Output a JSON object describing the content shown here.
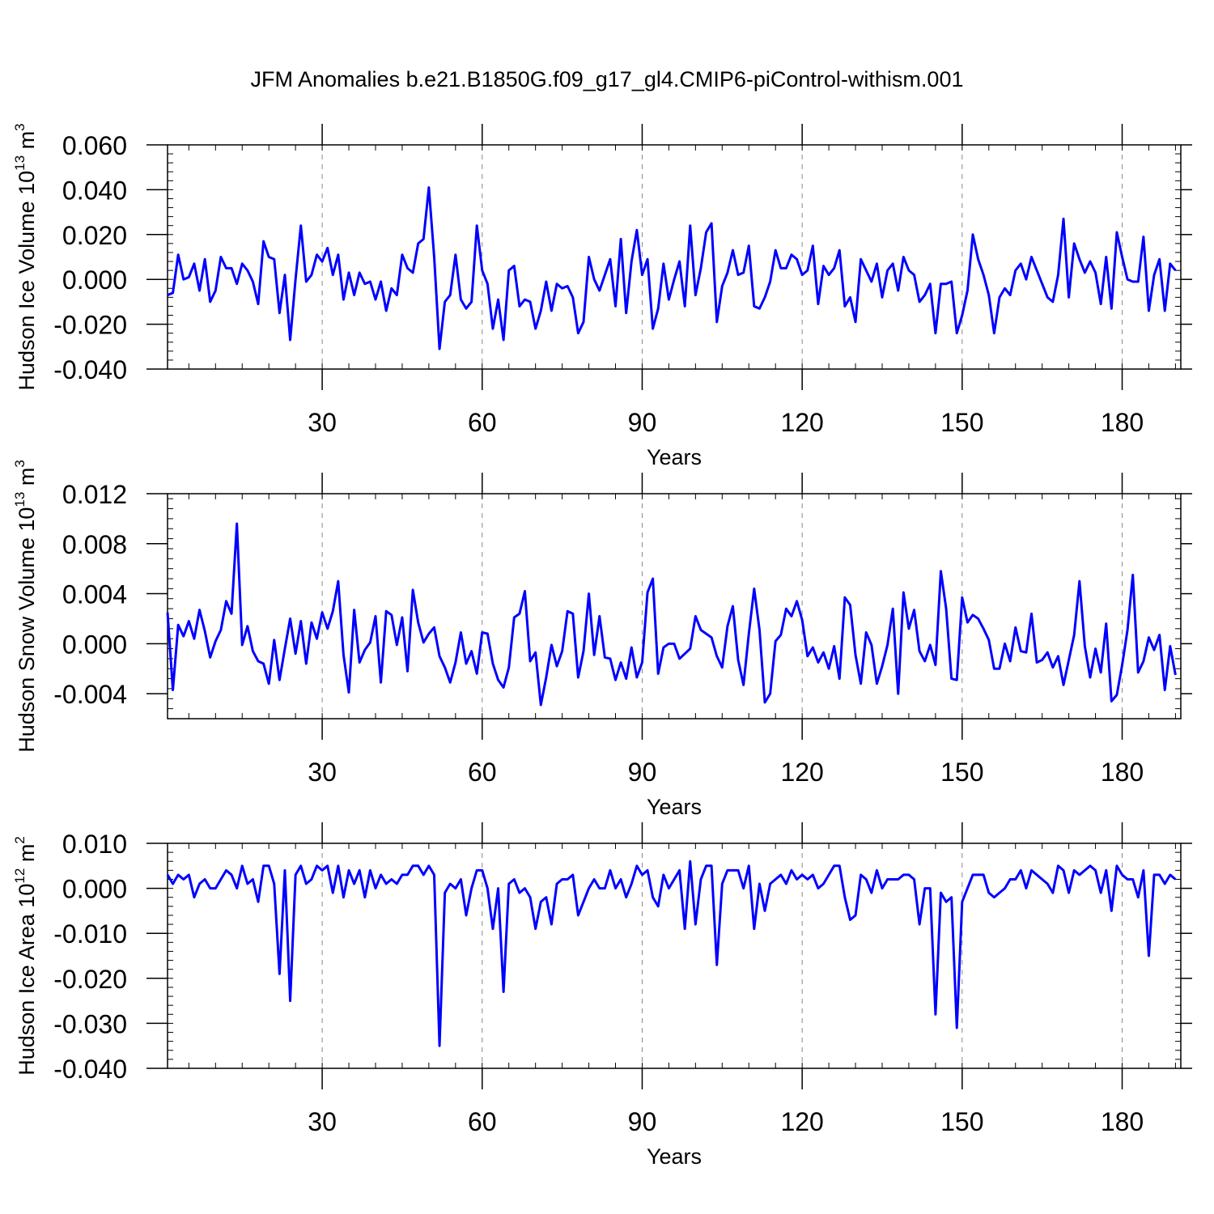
{
  "title": "JFM Anomalies b.e21.B1850G.f09_g17_gl4.CMIP6-piControl-withism.001",
  "line_color": "#0000ff",
  "chart_data": [
    {
      "type": "line",
      "ylabel": "Hudson Ice Volume",
      "unit_base": "10",
      "unit_exp": "13",
      "unit_name": "m",
      "unit_power": "3",
      "xlabel": "Years",
      "xlim": [
        1,
        191
      ],
      "ylim": [
        -0.04,
        0.06
      ],
      "yticks": [
        -0.04,
        -0.02,
        0.0,
        0.02,
        0.04,
        0.06
      ],
      "yticklabels": [
        "-0.040",
        "-0.020",
        "0.000",
        "0.020",
        "0.040",
        "0.060"
      ],
      "xticks": [
        30,
        60,
        90,
        120,
        150,
        180
      ],
      "xticklabels": [
        "30",
        "60",
        "90",
        "120",
        "150",
        "180"
      ],
      "grid_x": true,
      "values": [
        -0.007,
        -0.006,
        0.011,
        0.0,
        0.001,
        0.007,
        -0.005,
        0.009,
        -0.01,
        -0.005,
        0.01,
        0.005,
        0.005,
        -0.002,
        0.007,
        0.004,
        -0.001,
        -0.011,
        0.017,
        0.01,
        0.009,
        -0.015,
        0.002,
        -0.027,
        0.0,
        0.024,
        -0.001,
        0.002,
        0.011,
        0.008,
        0.014,
        0.002,
        0.011,
        -0.009,
        0.003,
        -0.007,
        0.003,
        -0.002,
        -0.001,
        -0.009,
        -0.001,
        -0.014,
        -0.004,
        -0.007,
        0.011,
        0.005,
        0.003,
        0.016,
        0.018,
        0.041,
        0.01,
        -0.031,
        -0.01,
        -0.007,
        0.011,
        -0.009,
        -0.013,
        -0.01,
        0.024,
        0.004,
        -0.002,
        -0.022,
        -0.009,
        -0.027,
        0.004,
        0.006,
        -0.012,
        -0.009,
        -0.01,
        -0.022,
        -0.014,
        -0.001,
        -0.014,
        -0.002,
        -0.004,
        -0.003,
        -0.008,
        -0.024,
        -0.019,
        0.01,
        0.0,
        -0.005,
        0.002,
        0.009,
        -0.012,
        0.018,
        -0.015,
        0.008,
        0.022,
        0.002,
        0.009,
        -0.022,
        -0.013,
        0.007,
        -0.009,
        0.0,
        0.008,
        -0.012,
        0.024,
        -0.007,
        0.005,
        0.021,
        0.025,
        -0.019,
        -0.003,
        0.003,
        0.013,
        0.002,
        0.003,
        0.015,
        -0.012,
        -0.013,
        -0.008,
        -0.001,
        0.013,
        0.005,
        0.005,
        0.011,
        0.009,
        0.002,
        0.004,
        0.015,
        -0.011,
        0.006,
        0.002,
        0.005,
        0.013,
        -0.012,
        -0.008,
        -0.019,
        0.009,
        0.004,
        -0.001,
        0.007,
        -0.008,
        0.004,
        0.007,
        -0.005,
        0.01,
        0.004,
        0.002,
        -0.01,
        -0.007,
        -0.002,
        -0.024,
        -0.002,
        -0.002,
        -0.001,
        -0.024,
        -0.016,
        -0.005,
        0.02,
        0.009,
        0.002,
        -0.007,
        -0.024,
        -0.008,
        -0.004,
        -0.007,
        0.004,
        0.007,
        0.0,
        0.01,
        0.004,
        -0.002,
        -0.008,
        -0.01,
        0.002,
        0.027,
        -0.008,
        0.016,
        0.009,
        0.003,
        0.008,
        0.003,
        -0.011,
        0.01,
        -0.013,
        0.021,
        0.01,
        0.0,
        -0.001,
        -0.001,
        0.019,
        -0.014,
        0.002,
        0.009,
        -0.014,
        0.007,
        0.004
      ]
    },
    {
      "type": "line",
      "ylabel": "Hudson Snow Volume",
      "unit_base": "10",
      "unit_exp": "13",
      "unit_name": "m",
      "unit_power": "3",
      "xlabel": "Years",
      "xlim": [
        1,
        191
      ],
      "ylim": [
        -0.006,
        0.012
      ],
      "yticks": [
        -0.004,
        0.0,
        0.004,
        0.008,
        0.012
      ],
      "yticklabels": [
        "-0.004",
        "0.000",
        "0.004",
        "0.008",
        "0.012"
      ],
      "xticks": [
        30,
        60,
        90,
        120,
        150,
        180
      ],
      "xticklabels": [
        "30",
        "60",
        "90",
        "120",
        "150",
        "180"
      ],
      "grid_x": true,
      "values": [
        0.0025,
        -0.0037,
        0.0015,
        0.0006,
        0.0018,
        0.0004,
        0.0027,
        0.001,
        -0.0011,
        0.0002,
        0.0011,
        0.0034,
        0.0024,
        0.0096,
        -0.0001,
        0.0014,
        -0.0006,
        -0.0014,
        -0.0016,
        -0.0032,
        0.0003,
        -0.0029,
        -0.0004,
        0.002,
        -0.0008,
        0.0018,
        -0.0016,
        0.0017,
        0.0004,
        0.0025,
        0.0012,
        0.0026,
        0.005,
        -0.0009,
        -0.0039,
        0.0027,
        -0.0015,
        -0.0005,
        0.0001,
        0.0022,
        -0.0031,
        0.0026,
        0.0023,
        -0.0001,
        0.0021,
        -0.0022,
        0.0043,
        0.0017,
        0.0001,
        0.0008,
        0.0013,
        -0.001,
        -0.0019,
        -0.0031,
        -0.0015,
        0.0009,
        -0.0016,
        -0.0006,
        -0.0024,
        0.0009,
        0.0008,
        -0.0016,
        -0.0029,
        -0.0035,
        -0.0019,
        0.0021,
        0.0024,
        0.0042,
        -0.0014,
        -0.0007,
        -0.0049,
        -0.0027,
        -0.0001,
        -0.0018,
        -0.0006,
        0.0026,
        0.0024,
        -0.0027,
        -0.0006,
        0.004,
        -0.0009,
        0.0022,
        -0.0011,
        -0.0012,
        -0.0029,
        -0.0015,
        -0.0028,
        -0.0003,
        -0.0027,
        -0.0015,
        0.0041,
        0.0052,
        -0.0024,
        -0.0003,
        0.0,
        0.0,
        -0.0012,
        -0.0008,
        -0.0004,
        0.0022,
        0.0011,
        0.0008,
        0.0005,
        -0.001,
        -0.0019,
        0.0014,
        0.003,
        -0.0013,
        -0.0033,
        0.0008,
        0.0044,
        0.0011,
        -0.0047,
        -0.004,
        0.0002,
        0.0007,
        0.0028,
        0.0022,
        0.0034,
        0.0019,
        -0.001,
        -0.0003,
        -0.0015,
        -0.0007,
        -0.002,
        -0.0002,
        -0.0028,
        0.0037,
        0.0031,
        -0.0009,
        -0.0032,
        0.0009,
        -0.0001,
        -0.0032,
        -0.0018,
        -0.0001,
        0.0028,
        -0.004,
        0.0041,
        0.0012,
        0.0027,
        -0.0006,
        -0.0014,
        -0.0001,
        -0.0017,
        0.0058,
        0.0028,
        -0.0028,
        -0.0029,
        0.0037,
        0.0017,
        0.0023,
        0.002,
        0.0012,
        0.0003,
        -0.002,
        -0.002,
        0.0,
        -0.0014,
        0.0013,
        -0.0006,
        -0.0007,
        0.0024,
        -0.0015,
        -0.0013,
        -0.0007,
        -0.0019,
        -0.001,
        -0.0033,
        -0.0013,
        0.0007,
        0.005,
        -0.0002,
        -0.0027,
        -0.0004,
        -0.0023,
        0.0016,
        -0.0046,
        -0.0041,
        -0.0017,
        0.0011,
        0.0055,
        -0.0023,
        -0.0014,
        0.0005,
        -0.0005,
        0.0007,
        -0.0037,
        -0.0002,
        -0.0025
      ]
    },
    {
      "type": "line",
      "ylabel": "Hudson Ice Area",
      "unit_base": "10",
      "unit_exp": "12",
      "unit_name": "m",
      "unit_power": "2",
      "xlabel": "Years",
      "xlim": [
        1,
        191
      ],
      "ylim": [
        -0.04,
        0.01
      ],
      "yticks": [
        -0.04,
        -0.03,
        -0.02,
        -0.01,
        0.0,
        0.01
      ],
      "yticklabels": [
        "-0.040",
        "-0.030",
        "-0.020",
        "-0.010",
        "0.000",
        "0.010"
      ],
      "xticks": [
        30,
        60,
        90,
        120,
        150,
        180
      ],
      "xticklabels": [
        "30",
        "60",
        "90",
        "120",
        "150",
        "180"
      ],
      "grid_x": true,
      "values": [
        0.003,
        0.001,
        0.003,
        0.002,
        0.003,
        -0.002,
        0.001,
        0.002,
        0.0,
        0.0,
        0.002,
        0.004,
        0.003,
        0.0,
        0.005,
        0.001,
        0.002,
        -0.003,
        0.005,
        0.005,
        0.001,
        -0.019,
        0.004,
        -0.025,
        0.003,
        0.005,
        0.001,
        0.002,
        0.005,
        0.004,
        0.005,
        -0.001,
        0.005,
        -0.002,
        0.004,
        0.001,
        0.004,
        -0.002,
        0.004,
        0.0,
        0.003,
        0.001,
        0.002,
        0.001,
        0.003,
        0.003,
        0.005,
        0.005,
        0.003,
        0.005,
        0.003,
        -0.035,
        -0.001,
        0.001,
        0.0,
        0.002,
        -0.006,
        0.0,
        0.004,
        0.004,
        0.0,
        -0.009,
        0.0,
        -0.023,
        0.001,
        0.002,
        -0.001,
        0.0,
        -0.002,
        -0.009,
        -0.003,
        -0.002,
        -0.008,
        0.001,
        0.002,
        0.002,
        0.003,
        -0.006,
        -0.003,
        0.0,
        0.002,
        0.0,
        0.0,
        0.004,
        0.0,
        0.002,
        -0.002,
        0.001,
        0.005,
        0.003,
        0.004,
        -0.002,
        -0.004,
        0.003,
        0.0,
        0.002,
        0.004,
        -0.009,
        0.006,
        -0.008,
        0.002,
        0.005,
        0.005,
        -0.017,
        0.001,
        0.004,
        0.004,
        0.004,
        0.0,
        0.005,
        -0.009,
        0.001,
        -0.005,
        0.001,
        0.002,
        0.003,
        0.001,
        0.004,
        0.002,
        0.003,
        0.002,
        0.003,
        0.0,
        0.001,
        0.003,
        0.005,
        0.005,
        -0.002,
        -0.007,
        -0.006,
        0.003,
        0.002,
        -0.001,
        0.004,
        0.0,
        0.002,
        0.002,
        0.002,
        0.003,
        0.003,
        0.002,
        -0.008,
        0.0,
        0.0,
        -0.028,
        -0.001,
        -0.003,
        -0.002,
        -0.031,
        -0.003,
        0.0,
        0.003,
        0.003,
        0.003,
        -0.001,
        -0.002,
        -0.001,
        0.0,
        0.002,
        0.002,
        0.004,
        0.0,
        0.004,
        0.003,
        0.002,
        0.001,
        -0.001,
        0.005,
        0.004,
        -0.001,
        0.004,
        0.003,
        0.004,
        0.005,
        0.004,
        -0.001,
        0.004,
        -0.005,
        0.005,
        0.003,
        0.002,
        0.002,
        -0.002,
        0.004,
        -0.015,
        0.003,
        0.003,
        0.001,
        0.003,
        0.002
      ]
    }
  ]
}
